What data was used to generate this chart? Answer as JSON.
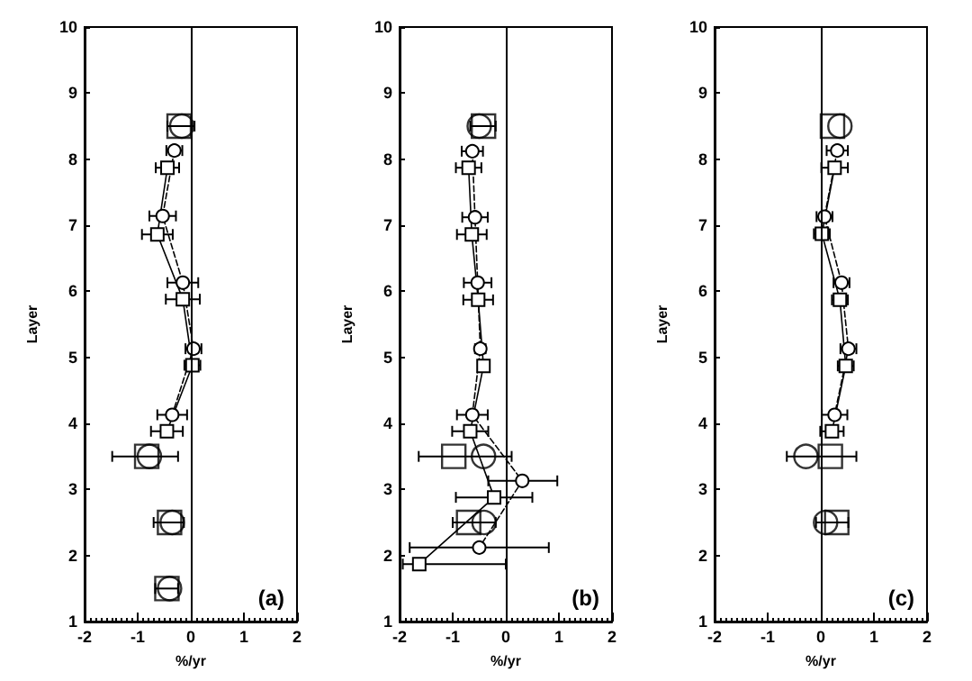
{
  "chart_data": [
    {
      "type": "line",
      "xlabel": "%/yr",
      "ylabel": "Layer",
      "annotations": [
        "(a)"
      ],
      "xlim": [
        -2,
        2
      ],
      "xticks": [
        -2,
        -1,
        0,
        1,
        2
      ],
      "ylim": [
        1,
        10
      ],
      "yticks": [
        1,
        2,
        3,
        4,
        5,
        6,
        7,
        8,
        9,
        10
      ],
      "ref_lines": [
        {
          "axis": "x",
          "value": 0,
          "color": "#000000",
          "line_style": "solid"
        }
      ],
      "series": [
        {
          "marker": "circle",
          "line_style": "dashed",
          "color": "#000000",
          "x": [
            -0.31,
            -0.53,
            -0.15,
            0.05,
            -0.35
          ],
          "values": [
            8.13,
            7.14,
            6.13,
            5.13,
            4.13
          ],
          "xerrors": [
            0.15,
            0.25,
            0.29,
            0.15,
            0.28
          ]
        },
        {
          "marker": "square",
          "line_style": "solid",
          "color": "#000000",
          "x": [
            -0.44,
            -0.63,
            -0.15,
            0.03,
            -0.45
          ],
          "values": [
            7.87,
            6.86,
            5.88,
            4.88,
            3.88
          ],
          "xerrors": [
            0.22,
            0.29,
            0.32,
            0.15,
            0.3
          ]
        },
        {
          "type": "scatter",
          "marker": "square",
          "color": "#000000",
          "x": [
            -0.22,
            -0.83,
            -0.4,
            -0.45
          ],
          "values": [
            8.5,
            3.5,
            2.5,
            1.5
          ]
        },
        {
          "type": "scatter",
          "marker": "circle",
          "color": "#000000",
          "x": [
            -0.17,
            -0.78,
            -0.35,
            -0.4
          ],
          "values": [
            8.5,
            3.5,
            2.5,
            1.5
          ],
          "xerrors": [
            [
              -0.44,
              0.07
            ],
            [
              -1.48,
              -0.24
            ],
            [
              -0.7,
              -0.13
            ],
            [
              -0.67,
              -0.24
            ]
          ]
        }
      ]
    },
    {
      "type": "line",
      "xlabel": "%/yr",
      "ylabel": "Layer",
      "annotations": [
        "(b)"
      ],
      "xlim": [
        -2,
        2
      ],
      "xticks": [
        -2,
        -1,
        0,
        1,
        2
      ],
      "ylim": [
        1,
        10
      ],
      "yticks": [
        1,
        2,
        3,
        4,
        5,
        6,
        7,
        8,
        9,
        10
      ],
      "ref_lines": [
        {
          "axis": "x",
          "value": 0,
          "color": "#000000",
          "line_style": "solid"
        }
      ],
      "series": [
        {
          "marker": "circle",
          "line_style": "dashed",
          "color": "#000000",
          "x": [
            -0.63,
            -0.58,
            -0.53,
            -0.48,
            -0.63,
            0.31,
            -0.5
          ],
          "values": [
            8.12,
            7.12,
            6.13,
            5.13,
            4.13,
            3.13,
            2.12
          ],
          "xerrors": [
            0.2,
            0.24,
            0.26,
            0.1,
            0.29,
            [
              -0.33,
              0.97
            ],
            [
              -1.81,
              0.81
            ]
          ]
        },
        {
          "marker": "square",
          "line_style": "solid",
          "color": "#000000",
          "x": [
            -0.7,
            -0.64,
            -0.52,
            -0.42,
            -0.67,
            -0.22,
            -1.63
          ],
          "values": [
            7.87,
            6.86,
            5.87,
            4.87,
            3.88,
            2.88,
            1.87
          ],
          "xerrors": [
            0.24,
            0.28,
            0.28,
            0.1,
            0.34,
            [
              -0.94,
              0.5
            ],
            [
              -1.94,
              0
            ]
          ]
        },
        {
          "type": "scatter",
          "marker": "square",
          "color": "#000000",
          "x": [
            -0.42,
            -0.98,
            -0.7
          ],
          "values": [
            8.5,
            3.5,
            2.5
          ]
        },
        {
          "type": "scatter",
          "marker": "circle",
          "color": "#000000",
          "x": [
            -0.5,
            -0.42,
            -0.41
          ],
          "values": [
            8.5,
            3.5,
            2.5
          ],
          "xerrors": [
            [
              -0.67,
              -0.19
            ],
            [
              -1.64,
              0.11
            ],
            [
              -1.0,
              -0.19
            ]
          ]
        }
      ]
    },
    {
      "type": "line",
      "xlabel": "%/yr",
      "ylabel": "Layer",
      "annotations": [
        "(c)"
      ],
      "xlim": [
        -2,
        2
      ],
      "xticks": [
        -2,
        -1,
        0,
        1,
        2
      ],
      "ylim": [
        1,
        10
      ],
      "yticks": [
        1,
        2,
        3,
        4,
        5,
        6,
        7,
        8,
        9,
        10
      ],
      "ref_lines": [
        {
          "axis": "x",
          "value": 0,
          "color": "#000000",
          "line_style": "solid"
        }
      ],
      "series": [
        {
          "marker": "circle",
          "line_style": "dashed",
          "color": "#000000",
          "x": [
            0.31,
            0.07,
            0.39,
            0.52,
            0.26
          ],
          "values": [
            8.13,
            7.13,
            6.13,
            5.13,
            4.13
          ],
          "xerrors": [
            0.2,
            0.15,
            0.15,
            0.15,
            0.24
          ]
        },
        {
          "marker": "square",
          "line_style": "solid",
          "color": "#000000",
          "x": [
            0.26,
            0.02,
            0.36,
            0.47,
            0.21
          ],
          "values": [
            7.87,
            6.87,
            5.87,
            4.87,
            3.88
          ],
          "xerrors": [
            0.25,
            0.15,
            0.15,
            0.15,
            0.22
          ]
        },
        {
          "type": "scatter",
          "marker": "square",
          "color": "#000000",
          "x": [
            0.22,
            0.18,
            0.3
          ],
          "values": [
            8.5,
            3.5,
            2.5
          ]
        },
        {
          "type": "scatter",
          "marker": "circle",
          "color": "#000000",
          "x": [
            0.36,
            -0.28,
            0.09
          ],
          "values": [
            8.5,
            3.5,
            2.5
          ],
          "xerrors": [
            null,
            [
              -0.64,
              0.67
            ],
            [
              -0.09,
              0.52
            ]
          ]
        }
      ]
    }
  ]
}
